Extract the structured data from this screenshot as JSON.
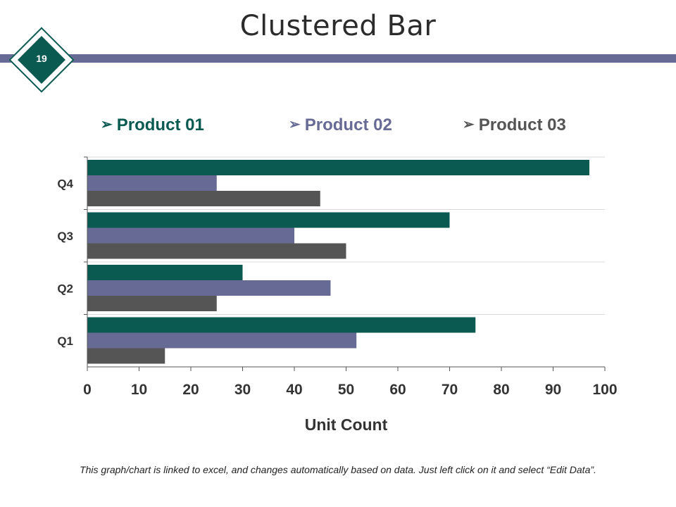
{
  "slide": {
    "title": "Clustered Bar",
    "page_number": "19",
    "footer_note": "This graph/chart is linked to excel, and changes automatically based on data. Just left click on it and select “Edit Data”."
  },
  "colors": {
    "product_01": "#0b5a52",
    "product_02": "#666a94",
    "product_03": "#555555",
    "header_band": "#666a94",
    "badge": "#0b5a52"
  },
  "legend": {
    "arrow_glyph": "➢",
    "items": [
      {
        "label": "Product 01"
      },
      {
        "label": "Product 02"
      },
      {
        "label": "Product 03"
      }
    ]
  },
  "chart_data": {
    "type": "bar",
    "orientation": "horizontal",
    "categories": [
      "Q1",
      "Q2",
      "Q3",
      "Q4"
    ],
    "series": [
      {
        "name": "Product 01",
        "values": [
          75,
          30,
          70,
          97
        ]
      },
      {
        "name": "Product 02",
        "values": [
          52,
          47,
          40,
          25
        ]
      },
      {
        "name": "Product 03",
        "values": [
          15,
          25,
          50,
          45
        ]
      }
    ],
    "xlim": [
      0,
      100
    ],
    "xticks": [
      0,
      10,
      20,
      30,
      40,
      50,
      60,
      70,
      80,
      90,
      100
    ],
    "xlabel": "Unit Count",
    "ylabel": "",
    "title": "",
    "grid": true,
    "legend_position": "top"
  }
}
